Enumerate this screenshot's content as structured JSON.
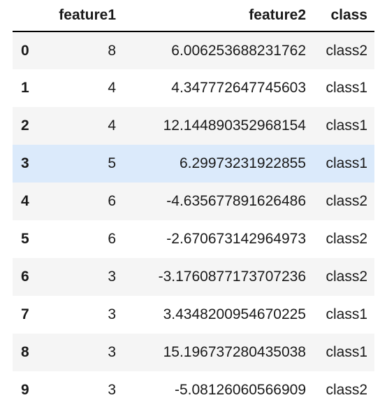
{
  "table": {
    "index_header": "",
    "headers": [
      "feature1",
      "feature2",
      "class"
    ],
    "rows": [
      {
        "index": "0",
        "feature1": "8",
        "feature2": "6.006253688231762",
        "class": "class2"
      },
      {
        "index": "1",
        "feature1": "4",
        "feature2": "4.347772647745603",
        "class": "class1"
      },
      {
        "index": "2",
        "feature1": "4",
        "feature2": "12.144890352968154",
        "class": "class1"
      },
      {
        "index": "3",
        "feature1": "5",
        "feature2": "6.29973231922855",
        "class": "class1"
      },
      {
        "index": "4",
        "feature1": "6",
        "feature2": "-4.635677891626486",
        "class": "class2"
      },
      {
        "index": "5",
        "feature1": "6",
        "feature2": "-2.670673142964973",
        "class": "class2"
      },
      {
        "index": "6",
        "feature1": "3",
        "feature2": "-3.1760877173707236",
        "class": "class2"
      },
      {
        "index": "7",
        "feature1": "3",
        "feature2": "3.4348200954670225",
        "class": "class1"
      },
      {
        "index": "8",
        "feature1": "3",
        "feature2": "15.196737280435038",
        "class": "class1"
      },
      {
        "index": "9",
        "feature1": "3",
        "feature2": "-5.08126060566909",
        "class": "class2"
      }
    ],
    "highlighted_row": 3,
    "colors": {
      "stripe": "#f5f5f5",
      "hover": "#dbeafb",
      "header_rule": "#000000"
    }
  }
}
